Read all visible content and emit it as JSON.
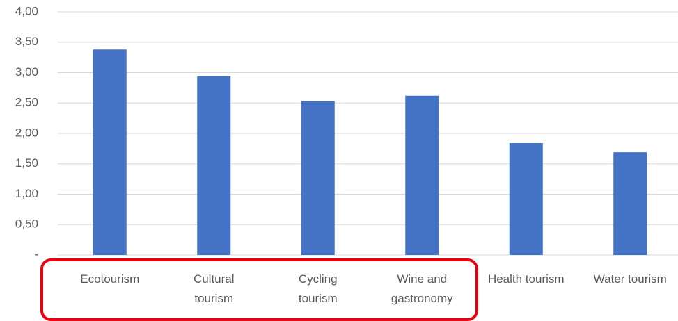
{
  "chart_data": {
    "type": "bar",
    "categories": [
      "Ecotourism",
      "Cultural tourism",
      "Cycling tourism",
      "Wine and gastronomy",
      "Health tourism",
      "Water tourism"
    ],
    "values": [
      3.38,
      2.94,
      2.53,
      2.62,
      1.84,
      1.69
    ],
    "color": "#4472c4",
    "ylim": [
      0,
      4
    ],
    "yticks": [
      {
        "value": 0,
        "label": "-"
      },
      {
        "value": 0.5,
        "label": "0,50"
      },
      {
        "value": 1,
        "label": "1,00"
      },
      {
        "value": 1.5,
        "label": "1,50"
      },
      {
        "value": 2,
        "label": "2,00"
      },
      {
        "value": 2.5,
        "label": "2,50"
      },
      {
        "value": 3,
        "label": "3,00"
      },
      {
        "value": 3.5,
        "label": "3,50"
      },
      {
        "value": 4,
        "label": "4,00"
      }
    ],
    "grid": true
  }
}
